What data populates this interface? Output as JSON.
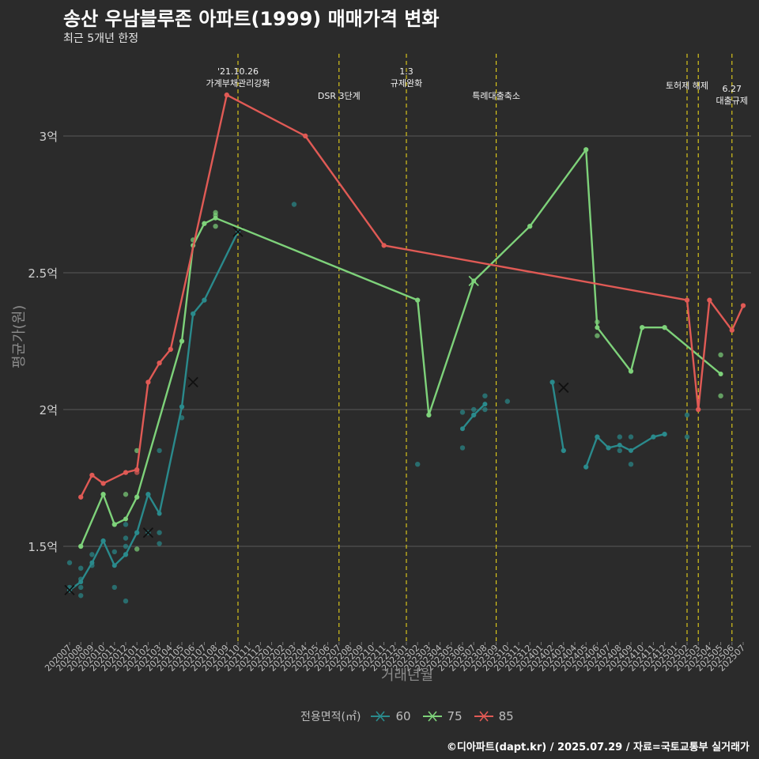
{
  "chart_data": {
    "type": "line",
    "title": "송산 우남블루존 아파트(1999) 매매가격 변화",
    "subtitle": "최근 5개년 한정",
    "xlabel": "거래년월",
    "ylabel": "평균가(원)",
    "caption": "©디아파트(dapt.kr) / 2025.07.29 / 자료=국토교통부 실거래가",
    "legend_title": "전용면적(㎡)",
    "legend_position": "bottom",
    "grid": true,
    "y_ticks": [
      {
        "value": 1.5,
        "label": "1.5억"
      },
      {
        "value": 2.0,
        "label": "2억"
      },
      {
        "value": 2.5,
        "label": "2.5억"
      },
      {
        "value": 3.0,
        "label": "3억"
      }
    ],
    "ylim": [
      1.2,
      3.3
    ],
    "x_categories": [
      "202007",
      "202008",
      "202009",
      "202010",
      "202011",
      "202012",
      "202101",
      "202102",
      "202103",
      "202104",
      "202105",
      "202106",
      "202107",
      "202108",
      "202109",
      "202110",
      "202111",
      "202112",
      "202201",
      "202202",
      "202203",
      "202204",
      "202205",
      "202206",
      "202207",
      "202208",
      "202209",
      "202210",
      "202211",
      "202212",
      "202301",
      "202302",
      "202303",
      "202304",
      "202305",
      "202306",
      "202307",
      "202308",
      "202309",
      "202310",
      "202311",
      "202312",
      "202401",
      "202402",
      "202403",
      "202404",
      "202405",
      "202406",
      "202407",
      "202408",
      "202409",
      "202410",
      "202411",
      "202412",
      "202501",
      "202502",
      "202503",
      "202504",
      "202505",
      "202506",
      "202507"
    ],
    "x_tick_labels": [
      "202007",
      "202008",
      "202009",
      "202010",
      "202011",
      "202012",
      "202101",
      "202102",
      "202103",
      "202104",
      "202105",
      "202106",
      "202107",
      "202108",
      "202109",
      "202110",
      "202111",
      "202112",
      "202201",
      "202202",
      "202203",
      "202204",
      "202205",
      "202206",
      "202207",
      "202208",
      "202209",
      "202210",
      "202211",
      "202212",
      "202301",
      "202302",
      "202303",
      "202304",
      "202305",
      "202306",
      "202307",
      "202308",
      "202309",
      "202310",
      "202311",
      "202312",
      "202401",
      "202402",
      "202403",
      "202404",
      "202405",
      "202406",
      "202407",
      "202408",
      "202409",
      "202410",
      "202411",
      "202412",
      "202501",
      "202502",
      "202503",
      "202504",
      "202505",
      "202506",
      "202507"
    ],
    "annotations": [
      {
        "x": "202110",
        "lines": [
          "'21.10.26",
          "가계부채관리강화"
        ],
        "level": 0
      },
      {
        "x": "202207",
        "lines": [
          "DSR 3단계"
        ],
        "level": 2
      },
      {
        "x": "202301",
        "lines": [
          "1.3",
          "규제완화"
        ],
        "level": 0
      },
      {
        "x": "202309",
        "lines": [
          "특례대출축소"
        ],
        "level": 2
      },
      {
        "x": "202502",
        "lines": [
          "토허제 해제"
        ],
        "level": 1
      },
      {
        "x": "202503",
        "lines": [],
        "level": 1
      },
      {
        "x": "202506",
        "lines": [
          "6.27",
          "대출규제"
        ],
        "level": 3
      }
    ],
    "series": [
      {
        "name": "60",
        "color": "#2a8a8c",
        "segments": [
          [
            [
              "202007",
              1.34
            ],
            [
              "202008",
              1.37
            ],
            [
              "202009",
              1.44
            ],
            [
              "202010",
              1.52
            ],
            [
              "202011",
              1.43
            ],
            [
              "202012",
              1.47
            ],
            [
              "202101",
              1.55
            ],
            [
              "202102",
              1.69
            ],
            [
              "202103",
              1.62
            ],
            [
              "202105",
              2.01
            ],
            [
              "202106",
              2.35
            ],
            [
              "202107",
              2.4
            ],
            [
              "202110",
              2.65
            ]
          ],
          [
            [
              "202306",
              1.93
            ],
            [
              "202307",
              1.98
            ],
            [
              "202308",
              2.02
            ]
          ],
          [
            [
              "202402",
              2.1
            ],
            [
              "202403",
              1.85
            ]
          ],
          [
            [
              "202405",
              1.79
            ],
            [
              "202406",
              1.9
            ],
            [
              "202407",
              1.86
            ],
            [
              "202408",
              1.87
            ],
            [
              "202409",
              1.85
            ],
            [
              "202411",
              1.9
            ],
            [
              "202412",
              1.91
            ]
          ]
        ],
        "points": [
          [
            "202007",
            1.44
          ],
          [
            "202007",
            1.35
          ],
          [
            "202007",
            1.34
          ],
          [
            "202008",
            1.32
          ],
          [
            "202008",
            1.35
          ],
          [
            "202008",
            1.38
          ],
          [
            "202008",
            1.42
          ],
          [
            "202009",
            1.43
          ],
          [
            "202009",
            1.47
          ],
          [
            "202010",
            1.52
          ],
          [
            "202011",
            1.48
          ],
          [
            "202011",
            1.35
          ],
          [
            "202012",
            1.3
          ],
          [
            "202012",
            1.47
          ],
          [
            "202012",
            1.5
          ],
          [
            "202012",
            1.53
          ],
          [
            "202012",
            1.58
          ],
          [
            "202101",
            1.55
          ],
          [
            "202102",
            1.55
          ],
          [
            "202102",
            1.69
          ],
          [
            "202103",
            1.51
          ],
          [
            "202103",
            1.55
          ],
          [
            "202103",
            1.85
          ],
          [
            "202105",
            1.97
          ],
          [
            "202105",
            2.01
          ],
          [
            "202106",
            2.35
          ],
          [
            "202107",
            2.4
          ],
          [
            "202203",
            2.75
          ],
          [
            "202302",
            1.8
          ],
          [
            "202306",
            1.86
          ],
          [
            "202306",
            1.99
          ],
          [
            "202307",
            1.98
          ],
          [
            "202307",
            2.0
          ],
          [
            "202308",
            2.0
          ],
          [
            "202308",
            2.05
          ],
          [
            "202310",
            2.03
          ],
          [
            "202402",
            2.1
          ],
          [
            "202403",
            1.85
          ],
          [
            "202405",
            1.79
          ],
          [
            "202406",
            1.9
          ],
          [
            "202407",
            1.86
          ],
          [
            "202408",
            1.85
          ],
          [
            "202408",
            1.9
          ],
          [
            "202409",
            1.8
          ],
          [
            "202409",
            1.9
          ],
          [
            "202411",
            1.9
          ],
          [
            "202412",
            1.91
          ],
          [
            "202502",
            1.9
          ],
          [
            "202502",
            1.98
          ]
        ],
        "x_marks": [
          [
            "202007",
            1.34
          ],
          [
            "202102",
            1.55
          ],
          [
            "202106",
            2.1
          ],
          [
            "202110",
            2.65
          ],
          [
            "202403",
            2.08
          ]
        ]
      },
      {
        "name": "75",
        "color": "#7ed27a",
        "segments": [
          [
            [
              "202008",
              1.5
            ],
            [
              "202010",
              1.69
            ],
            [
              "202011",
              1.58
            ],
            [
              "202012",
              1.6
            ],
            [
              "202101",
              1.68
            ],
            [
              "202105",
              2.25
            ],
            [
              "202106",
              2.6
            ],
            [
              "202107",
              2.68
            ],
            [
              "202108",
              2.7
            ],
            [
              "202302",
              2.4
            ],
            [
              "202303",
              1.98
            ],
            [
              "202307",
              2.47
            ],
            [
              "202312",
              2.67
            ],
            [
              "202405",
              2.95
            ],
            [
              "202406",
              2.3
            ],
            [
              "202409",
              2.14
            ],
            [
              "202410",
              2.3
            ],
            [
              "202412",
              2.3
            ],
            [
              "202505",
              2.13
            ]
          ]
        ],
        "points": [
          [
            "202008",
            1.5
          ],
          [
            "202010",
            1.69
          ],
          [
            "202011",
            1.58
          ],
          [
            "202012",
            1.69
          ],
          [
            "202101",
            1.49
          ],
          [
            "202101",
            1.68
          ],
          [
            "202101",
            1.85
          ],
          [
            "202105",
            2.25
          ],
          [
            "202106",
            2.62
          ],
          [
            "202107",
            2.68
          ],
          [
            "202108",
            2.67
          ],
          [
            "202108",
            2.71
          ],
          [
            "202108",
            2.72
          ],
          [
            "202302",
            2.4
          ],
          [
            "202303",
            1.98
          ],
          [
            "202312",
            2.67
          ],
          [
            "202405",
            2.95
          ],
          [
            "202406",
            2.27
          ],
          [
            "202406",
            2.32
          ],
          [
            "202409",
            2.14
          ],
          [
            "202410",
            2.3
          ],
          [
            "202412",
            2.3
          ],
          [
            "202505",
            2.05
          ],
          [
            "202505",
            2.2
          ]
        ],
        "x_marks": [
          [
            "202307",
            2.47
          ]
        ]
      },
      {
        "name": "85",
        "color": "#e05a55",
        "segments": [
          [
            [
              "202008",
              1.68
            ],
            [
              "202009",
              1.76
            ],
            [
              "202010",
              1.73
            ],
            [
              "202012",
              1.77
            ],
            [
              "202101",
              1.78
            ],
            [
              "202102",
              2.1
            ],
            [
              "202103",
              2.17
            ],
            [
              "202104",
              2.22
            ],
            [
              "202109",
              3.15
            ],
            [
              "202204",
              3.0
            ],
            [
              "202211",
              2.6
            ],
            [
              "202502",
              2.4
            ],
            [
              "202503",
              2.0
            ],
            [
              "202504",
              2.4
            ],
            [
              "202506",
              2.29
            ],
            [
              "202507",
              2.38
            ]
          ]
        ],
        "points": [
          [
            "202008",
            1.68
          ],
          [
            "202009",
            1.76
          ],
          [
            "202010",
            1.73
          ],
          [
            "202012",
            1.77
          ],
          [
            "202101",
            1.78
          ],
          [
            "202101",
            1.77
          ],
          [
            "202102",
            2.1
          ],
          [
            "202103",
            2.17
          ],
          [
            "202104",
            2.22
          ],
          [
            "202109",
            3.15
          ],
          [
            "202204",
            3.0
          ],
          [
            "202211",
            2.6
          ],
          [
            "202502",
            2.4
          ],
          [
            "202503",
            2.0
          ],
          [
            "202504",
            2.4
          ],
          [
            "202506",
            2.29
          ],
          [
            "202507",
            2.38
          ]
        ],
        "x_marks": []
      }
    ]
  }
}
